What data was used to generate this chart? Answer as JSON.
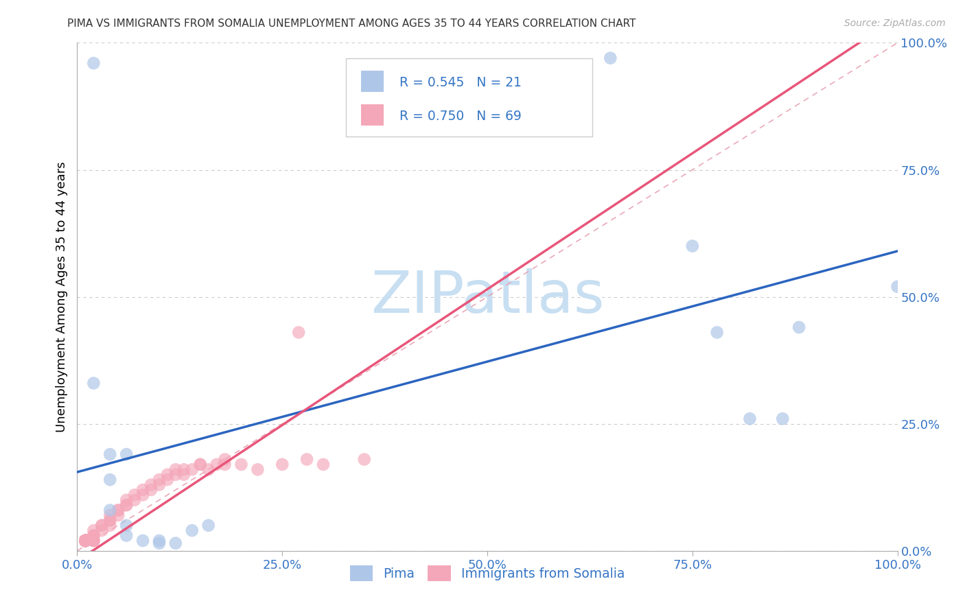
{
  "title": "PIMA VS IMMIGRANTS FROM SOMALIA UNEMPLOYMENT AMONG AGES 35 TO 44 YEARS CORRELATION CHART",
  "source": "Source: ZipAtlas.com",
  "ylabel_label": "Unemployment Among Ages 35 to 44 years",
  "pima_R": 0.545,
  "pima_N": 21,
  "somalia_R": 0.75,
  "somalia_N": 69,
  "pima_color": "#aec6e8",
  "somalia_color": "#f4a7b9",
  "pima_line_color": "#2b65c0",
  "somalia_line_color": "#e8567a",
  "diagonal_color": "#e8a0b0",
  "tick_color": "#3575c5",
  "legend_text_color": "#3575c5",
  "watermark_color": "#c8dff2",
  "background_color": "#ffffff",
  "grid_color": "#cccccc",
  "pima_points": [
    [
      0.02,
      0.96
    ],
    [
      0.65,
      0.97
    ],
    [
      0.02,
      0.33
    ],
    [
      0.04,
      0.19
    ],
    [
      0.06,
      0.19
    ],
    [
      0.04,
      0.14
    ],
    [
      0.04,
      0.08
    ],
    [
      0.06,
      0.05
    ],
    [
      0.06,
      0.03
    ],
    [
      0.08,
      0.02
    ],
    [
      0.1,
      0.02
    ],
    [
      0.1,
      0.015
    ],
    [
      0.12,
      0.015
    ],
    [
      0.14,
      0.04
    ],
    [
      0.16,
      0.05
    ],
    [
      0.75,
      0.6
    ],
    [
      0.78,
      0.43
    ],
    [
      0.82,
      0.26
    ],
    [
      0.86,
      0.26
    ],
    [
      0.88,
      0.44
    ],
    [
      1.0,
      0.52
    ]
  ],
  "somalia_points": [
    [
      0.01,
      0.02
    ],
    [
      0.01,
      0.02
    ],
    [
      0.01,
      0.02
    ],
    [
      0.01,
      0.02
    ],
    [
      0.01,
      0.02
    ],
    [
      0.01,
      0.02
    ],
    [
      0.01,
      0.02
    ],
    [
      0.01,
      0.02
    ],
    [
      0.01,
      0.02
    ],
    [
      0.01,
      0.02
    ],
    [
      0.01,
      0.02
    ],
    [
      0.01,
      0.02
    ],
    [
      0.01,
      0.02
    ],
    [
      0.01,
      0.02
    ],
    [
      0.01,
      0.02
    ],
    [
      0.01,
      0.02
    ],
    [
      0.01,
      0.02
    ],
    [
      0.01,
      0.02
    ],
    [
      0.01,
      0.02
    ],
    [
      0.01,
      0.02
    ],
    [
      0.02,
      0.02
    ],
    [
      0.02,
      0.02
    ],
    [
      0.02,
      0.02
    ],
    [
      0.02,
      0.02
    ],
    [
      0.02,
      0.03
    ],
    [
      0.02,
      0.03
    ],
    [
      0.02,
      0.03
    ],
    [
      0.02,
      0.04
    ],
    [
      0.03,
      0.04
    ],
    [
      0.03,
      0.05
    ],
    [
      0.03,
      0.05
    ],
    [
      0.04,
      0.05
    ],
    [
      0.04,
      0.06
    ],
    [
      0.04,
      0.06
    ],
    [
      0.04,
      0.07
    ],
    [
      0.05,
      0.07
    ],
    [
      0.05,
      0.08
    ],
    [
      0.05,
      0.08
    ],
    [
      0.06,
      0.09
    ],
    [
      0.06,
      0.09
    ],
    [
      0.06,
      0.1
    ],
    [
      0.07,
      0.1
    ],
    [
      0.07,
      0.11
    ],
    [
      0.08,
      0.11
    ],
    [
      0.08,
      0.12
    ],
    [
      0.09,
      0.12
    ],
    [
      0.09,
      0.13
    ],
    [
      0.1,
      0.13
    ],
    [
      0.1,
      0.14
    ],
    [
      0.11,
      0.14
    ],
    [
      0.11,
      0.15
    ],
    [
      0.12,
      0.15
    ],
    [
      0.12,
      0.16
    ],
    [
      0.13,
      0.15
    ],
    [
      0.13,
      0.16
    ],
    [
      0.14,
      0.16
    ],
    [
      0.15,
      0.17
    ],
    [
      0.15,
      0.17
    ],
    [
      0.16,
      0.16
    ],
    [
      0.17,
      0.17
    ],
    [
      0.18,
      0.17
    ],
    [
      0.18,
      0.18
    ],
    [
      0.2,
      0.17
    ],
    [
      0.22,
      0.16
    ],
    [
      0.25,
      0.17
    ],
    [
      0.27,
      0.43
    ],
    [
      0.28,
      0.18
    ],
    [
      0.3,
      0.17
    ],
    [
      0.35,
      0.18
    ]
  ],
  "pima_line": [
    0.0,
    0.155,
    1.0,
    0.59
  ],
  "somalia_line": [
    0.0,
    -0.02,
    1.0,
    1.05
  ]
}
